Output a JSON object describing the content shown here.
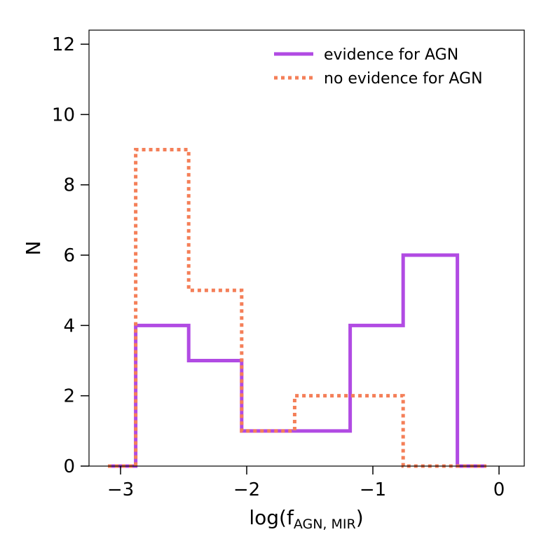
{
  "chart_data": {
    "type": "histogram",
    "xlabel": {
      "main": "log(f",
      "sub": "AGN, MIR",
      "close": ")"
    },
    "ylabel": "N",
    "xlim": [
      -3.25,
      0.2
    ],
    "ylim": [
      0,
      12.4
    ],
    "xticks": [
      -3,
      -2,
      -1,
      0
    ],
    "xtick_labels": [
      "−3",
      "−2",
      "−1",
      "0"
    ],
    "yticks": [
      0,
      2,
      4,
      6,
      8,
      10,
      12
    ],
    "ytick_labels": [
      "0",
      "2",
      "4",
      "6",
      "8",
      "10",
      "12"
    ],
    "bin_edges": [
      -3.1,
      -2.88,
      -2.46,
      -2.04,
      -1.62,
      -1.18,
      -0.76,
      -0.33,
      -0.1
    ],
    "series": [
      {
        "name": "evidence for AGN",
        "style": "solid",
        "color": "#b14be3",
        "counts": [
          0,
          4,
          3,
          1,
          1,
          4,
          6,
          0
        ]
      },
      {
        "name": "no evidence for AGN",
        "style": "dotted",
        "color": "#f47f58",
        "counts": [
          0,
          9,
          5,
          1,
          2,
          2,
          0,
          0
        ]
      }
    ],
    "legend_position": "top-right"
  }
}
